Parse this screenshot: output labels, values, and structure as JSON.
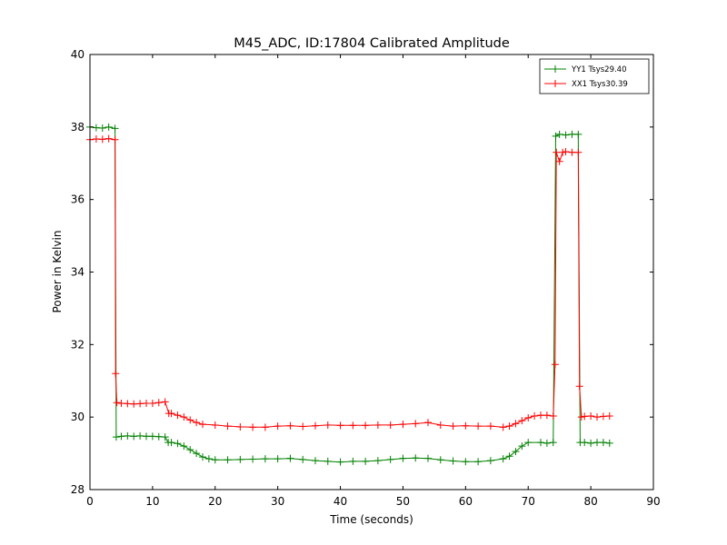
{
  "chart_data": {
    "type": "line",
    "title": "M45_ADC, ID:17804 Calibrated Amplitude",
    "xlabel": "Time (seconds)",
    "ylabel": "Power in Kelvin",
    "xlim": [
      0,
      90
    ],
    "ylim": [
      28,
      40
    ],
    "xticks": [
      "0",
      "10",
      "20",
      "30",
      "40",
      "50",
      "60",
      "70",
      "80",
      "90"
    ],
    "yticks": [
      "28",
      "30",
      "32",
      "34",
      "36",
      "38",
      "40"
    ],
    "grid": false,
    "legend_position": "top-right",
    "marker": "+",
    "series": [
      {
        "name": "YY1 Tsys29.40",
        "color": "#008000",
        "points": [
          [
            0,
            38.0
          ],
          [
            1,
            37.98
          ],
          [
            2,
            37.97
          ],
          [
            3,
            38.0
          ],
          [
            4,
            37.96
          ],
          [
            4.2,
            29.45
          ],
          [
            5,
            29.47
          ],
          [
            6,
            29.48
          ],
          [
            7,
            29.47
          ],
          [
            8,
            29.48
          ],
          [
            9,
            29.47
          ],
          [
            10,
            29.47
          ],
          [
            11,
            29.46
          ],
          [
            12,
            29.45
          ],
          [
            12.5,
            29.3
          ],
          [
            13,
            29.3
          ],
          [
            14,
            29.27
          ],
          [
            15,
            29.2
          ],
          [
            16,
            29.1
          ],
          [
            17,
            29.0
          ],
          [
            18,
            28.9
          ],
          [
            19,
            28.85
          ],
          [
            20,
            28.82
          ],
          [
            22,
            28.82
          ],
          [
            24,
            28.83
          ],
          [
            26,
            28.84
          ],
          [
            28,
            28.85
          ],
          [
            30,
            28.85
          ],
          [
            32,
            28.86
          ],
          [
            34,
            28.83
          ],
          [
            36,
            28.8
          ],
          [
            38,
            28.78
          ],
          [
            40,
            28.76
          ],
          [
            42,
            28.78
          ],
          [
            44,
            28.78
          ],
          [
            46,
            28.8
          ],
          [
            48,
            28.83
          ],
          [
            50,
            28.86
          ],
          [
            52,
            28.87
          ],
          [
            54,
            28.86
          ],
          [
            56,
            28.82
          ],
          [
            58,
            28.79
          ],
          [
            60,
            28.77
          ],
          [
            62,
            28.77
          ],
          [
            64,
            28.8
          ],
          [
            66,
            28.85
          ],
          [
            67,
            28.92
          ],
          [
            68,
            29.05
          ],
          [
            69,
            29.2
          ],
          [
            70,
            29.3
          ],
          [
            72,
            29.3
          ],
          [
            73,
            29.28
          ],
          [
            74,
            29.3
          ],
          [
            74.4,
            37.75
          ],
          [
            75,
            37.8
          ],
          [
            76,
            37.78
          ],
          [
            77,
            37.8
          ],
          [
            78,
            37.8
          ],
          [
            78.3,
            29.3
          ],
          [
            79,
            29.3
          ],
          [
            80,
            29.28
          ],
          [
            81,
            29.3
          ],
          [
            82,
            29.3
          ],
          [
            83,
            29.28
          ]
        ]
      },
      {
        "name": "XX1 Tsys30.39",
        "color": "#ff0000",
        "points": [
          [
            0,
            37.65
          ],
          [
            1,
            37.67
          ],
          [
            2,
            37.66
          ],
          [
            3,
            37.68
          ],
          [
            4,
            37.65
          ],
          [
            4.1,
            31.2
          ],
          [
            4.3,
            30.4
          ],
          [
            5,
            30.38
          ],
          [
            6,
            30.37
          ],
          [
            7,
            30.36
          ],
          [
            8,
            30.37
          ],
          [
            9,
            30.38
          ],
          [
            10,
            30.38
          ],
          [
            11,
            30.4
          ],
          [
            12,
            30.42
          ],
          [
            12.6,
            30.1
          ],
          [
            13,
            30.1
          ],
          [
            14,
            30.05
          ],
          [
            15,
            30.0
          ],
          [
            16,
            29.92
          ],
          [
            17,
            29.85
          ],
          [
            18,
            29.8
          ],
          [
            20,
            29.78
          ],
          [
            22,
            29.75
          ],
          [
            24,
            29.73
          ],
          [
            26,
            29.72
          ],
          [
            28,
            29.72
          ],
          [
            30,
            29.75
          ],
          [
            32,
            29.76
          ],
          [
            34,
            29.74
          ],
          [
            36,
            29.76
          ],
          [
            38,
            29.78
          ],
          [
            40,
            29.77
          ],
          [
            42,
            29.77
          ],
          [
            44,
            29.77
          ],
          [
            46,
            29.78
          ],
          [
            48,
            29.78
          ],
          [
            50,
            29.8
          ],
          [
            52,
            29.82
          ],
          [
            54,
            29.85
          ],
          [
            56,
            29.78
          ],
          [
            58,
            29.75
          ],
          [
            60,
            29.76
          ],
          [
            62,
            29.75
          ],
          [
            64,
            29.75
          ],
          [
            66,
            29.72
          ],
          [
            67,
            29.75
          ],
          [
            68,
            29.82
          ],
          [
            69,
            29.9
          ],
          [
            70,
            29.98
          ],
          [
            71,
            30.03
          ],
          [
            72,
            30.05
          ],
          [
            73,
            30.05
          ],
          [
            74,
            30.03
          ],
          [
            74.3,
            31.45
          ],
          [
            74.5,
            37.3
          ],
          [
            75,
            37.05
          ],
          [
            75.5,
            37.3
          ],
          [
            76,
            37.32
          ],
          [
            77,
            37.3
          ],
          [
            78,
            37.3
          ],
          [
            78.2,
            30.85
          ],
          [
            78.5,
            30.0
          ],
          [
            79,
            30.02
          ],
          [
            80,
            30.03
          ],
          [
            81,
            30.0
          ],
          [
            82,
            30.02
          ],
          [
            83,
            30.03
          ]
        ]
      }
    ]
  }
}
